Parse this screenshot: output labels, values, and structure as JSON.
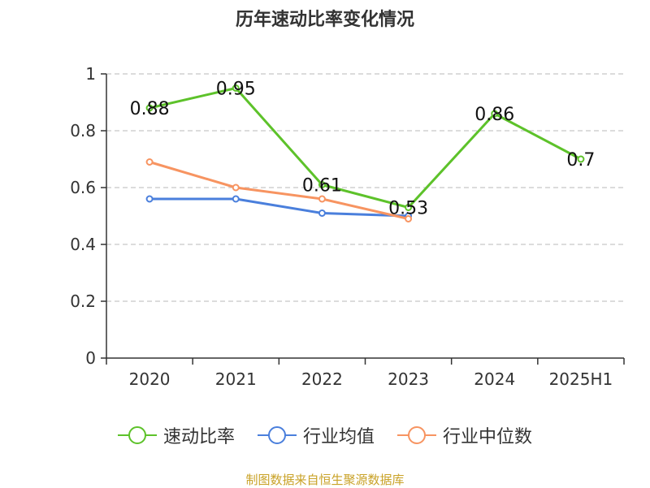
{
  "title": "历年速动比率变化情况",
  "footer": "制图数据来自恒生聚源数据库",
  "chart_data": {
    "type": "line",
    "categories": [
      "2020",
      "2021",
      "2022",
      "2023",
      "2024",
      "2025H1"
    ],
    "ylim": [
      0,
      1
    ],
    "yticks": [
      "0",
      "0.2",
      "0.4",
      "0.6",
      "0.8",
      "1"
    ],
    "yticks_values": [
      0,
      0.2,
      0.4,
      0.6,
      0.8,
      1
    ],
    "grid": true,
    "legend": "bottom",
    "series": [
      {
        "name": "速动比率",
        "color": "#5dc22a",
        "values": [
          0.88,
          0.95,
          0.61,
          0.53,
          0.86,
          0.7
        ],
        "labels": [
          "0.88",
          "0.95",
          "0.61",
          "0.53",
          "0.86",
          "0.7"
        ]
      },
      {
        "name": "行业均值",
        "color": "#4a7fdc",
        "values": [
          0.56,
          0.56,
          0.51,
          0.5,
          null,
          null
        ]
      },
      {
        "name": "行业中位数",
        "color": "#f79461",
        "values": [
          0.69,
          0.6,
          0.56,
          0.49,
          null,
          null
        ]
      }
    ]
  }
}
